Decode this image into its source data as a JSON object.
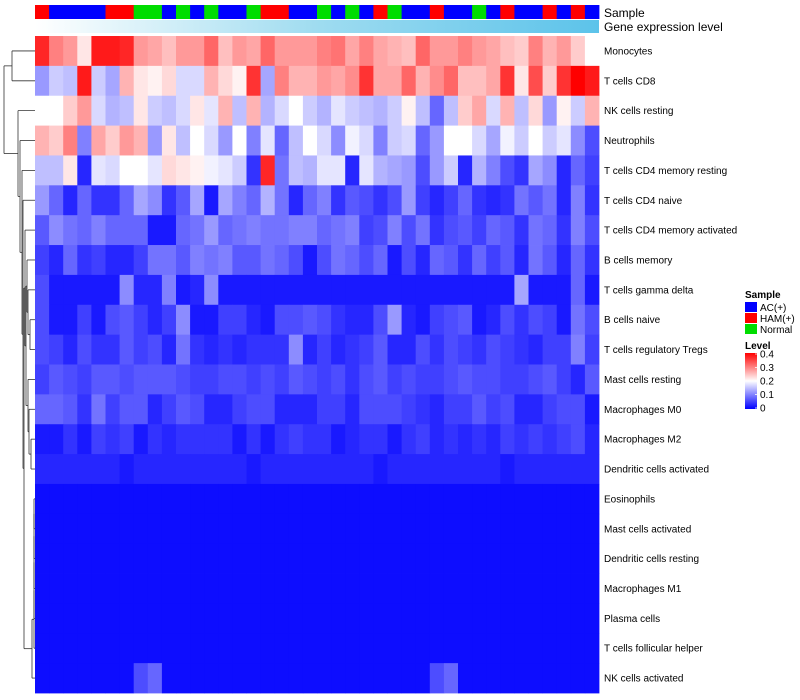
{
  "chart_data": {
    "type": "heatmap",
    "title": "",
    "annotation_row_labels": [
      "Sample",
      "Gene expression level"
    ],
    "row_labels": [
      "Monocytes",
      "T cells CD8",
      "NK cells resting",
      "Neutrophils",
      "T cells CD4 memory resting",
      "T cells CD4 naive",
      "T cells CD4 memory activated",
      "B cells memory",
      "T cells gamma delta",
      "B cells naive",
      "T cells regulatory  Tregs",
      "Mast cells resting",
      "Macrophages M0",
      "Macrophages M2",
      "Dendritic cells activated",
      "Eosinophils",
      "Mast cells activated",
      "Dendritic cells resting",
      "Macrophages M1",
      "Plasma cells",
      "T cells follicular helper",
      "NK cells activated"
    ],
    "sample_groups": [
      "HAM",
      "AC",
      "AC",
      "AC",
      "AC",
      "HAM",
      "HAM",
      "Normal",
      "Normal",
      "AC",
      "Normal",
      "AC",
      "Normal",
      "AC",
      "AC",
      "Normal",
      "HAM",
      "HAM",
      "AC",
      "AC",
      "Normal",
      "AC",
      "Normal",
      "AC",
      "HAM",
      "Normal",
      "AC",
      "AC",
      "HAM",
      "AC",
      "AC",
      "Normal",
      "AC",
      "HAM",
      "AC",
      "AC",
      "HAM",
      "AC",
      "HAM",
      "AC"
    ],
    "color_scale": {
      "min": 0,
      "max": 0.4,
      "colors": [
        "#0000ff",
        "#ffffff",
        "#ff0000"
      ],
      "ticks": [
        "0.4",
        "0.3",
        "0.2",
        "0.1",
        "0"
      ]
    },
    "legend_sample": {
      "title": "Sample",
      "entries": [
        {
          "label": "AC(+)",
          "color": "#0000ff"
        },
        {
          "label": "HAM(+)",
          "color": "#ff0000"
        },
        {
          "label": "Normal",
          "color": "#00dd00"
        }
      ]
    },
    "legend_level": {
      "title": "Level"
    },
    "gene_expression_bar_colors": [
      "#ffffff",
      "#9fdcf0",
      "#5cc3ea"
    ],
    "values": [
      [
        0.37,
        0.3,
        0.28,
        0.22,
        0.38,
        0.38,
        0.37,
        0.28,
        0.27,
        0.25,
        0.28,
        0.28,
        0.32,
        0.25,
        0.28,
        0.27,
        0.32,
        0.28,
        0.28,
        0.28,
        0.3,
        0.31,
        0.27,
        0.3,
        0.27,
        0.26,
        0.25,
        0.32,
        0.28,
        0.28,
        0.3,
        0.28,
        0.27,
        0.25,
        0.24,
        0.3,
        0.26,
        0.28,
        0.24,
        0.2
      ],
      [
        0.12,
        0.16,
        0.15,
        0.38,
        0.16,
        0.13,
        0.26,
        0.22,
        0.21,
        0.23,
        0.17,
        0.17,
        0.26,
        0.23,
        0.21,
        0.36,
        0.13,
        0.3,
        0.26,
        0.26,
        0.28,
        0.27,
        0.29,
        0.36,
        0.27,
        0.27,
        0.32,
        0.26,
        0.29,
        0.32,
        0.25,
        0.25,
        0.27,
        0.36,
        0.22,
        0.34,
        0.24,
        0.36,
        0.4,
        0.38
      ],
      [
        0.2,
        0.2,
        0.24,
        0.28,
        0.17,
        0.14,
        0.15,
        0.22,
        0.16,
        0.15,
        0.17,
        0.22,
        0.18,
        0.26,
        0.15,
        0.26,
        0.14,
        0.17,
        0.2,
        0.16,
        0.14,
        0.18,
        0.16,
        0.15,
        0.14,
        0.16,
        0.21,
        0.15,
        0.08,
        0.15,
        0.24,
        0.27,
        0.17,
        0.26,
        0.15,
        0.23,
        0.12,
        0.21,
        0.16,
        0.26
      ],
      [
        0.26,
        0.24,
        0.3,
        0.1,
        0.27,
        0.24,
        0.28,
        0.26,
        0.12,
        0.22,
        0.15,
        0.2,
        0.17,
        0.12,
        0.2,
        0.1,
        0.18,
        0.08,
        0.15,
        0.2,
        0.17,
        0.11,
        0.19,
        0.17,
        0.1,
        0.16,
        0.17,
        0.08,
        0.12,
        0.2,
        0.2,
        0.17,
        0.13,
        0.19,
        0.16,
        0.2,
        0.16,
        0.18,
        0.11,
        0.06
      ],
      [
        0.15,
        0.15,
        0.22,
        0.03,
        0.18,
        0.17,
        0.2,
        0.2,
        0.18,
        0.23,
        0.22,
        0.21,
        0.19,
        0.18,
        0.16,
        0.04,
        0.37,
        0.09,
        0.15,
        0.14,
        0.18,
        0.18,
        0.03,
        0.18,
        0.14,
        0.13,
        0.12,
        0.06,
        0.12,
        0.16,
        0.03,
        0.14,
        0.1,
        0.06,
        0.04,
        0.13,
        0.11,
        0.03,
        0.08,
        0.05
      ],
      [
        0.12,
        0.08,
        0.03,
        0.08,
        0.04,
        0.04,
        0.08,
        0.13,
        0.11,
        0.04,
        0.07,
        0.13,
        0.02,
        0.13,
        0.1,
        0.08,
        0.14,
        0.09,
        0.03,
        0.08,
        0.1,
        0.04,
        0.07,
        0.06,
        0.04,
        0.06,
        0.12,
        0.05,
        0.03,
        0.05,
        0.08,
        0.04,
        0.03,
        0.04,
        0.09,
        0.07,
        0.09,
        0.03,
        0.1,
        0.04
      ],
      [
        0.07,
        0.11,
        0.09,
        0.08,
        0.1,
        0.08,
        0.08,
        0.08,
        0.02,
        0.02,
        0.08,
        0.09,
        0.12,
        0.08,
        0.09,
        0.1,
        0.09,
        0.09,
        0.1,
        0.1,
        0.08,
        0.09,
        0.1,
        0.05,
        0.06,
        0.1,
        0.06,
        0.09,
        0.04,
        0.06,
        0.07,
        0.05,
        0.08,
        0.07,
        0.04,
        0.09,
        0.08,
        0.04,
        0.1,
        0.06
      ],
      [
        0.05,
        0.03,
        0.08,
        0.04,
        0.05,
        0.03,
        0.03,
        0.05,
        0.09,
        0.09,
        0.07,
        0.1,
        0.09,
        0.1,
        0.07,
        0.07,
        0.09,
        0.08,
        0.06,
        0.02,
        0.06,
        0.09,
        0.08,
        0.06,
        0.08,
        0.02,
        0.06,
        0.03,
        0.08,
        0.07,
        0.04,
        0.08,
        0.05,
        0.07,
        0.03,
        0.09,
        0.07,
        0.03,
        0.08,
        0.04
      ],
      [
        0.06,
        0.02,
        0.02,
        0.02,
        0.02,
        0.02,
        0.11,
        0.03,
        0.03,
        0.1,
        0.02,
        0.03,
        0.11,
        0.02,
        0.02,
        0.02,
        0.02,
        0.02,
        0.02,
        0.02,
        0.02,
        0.02,
        0.02,
        0.02,
        0.02,
        0.02,
        0.02,
        0.02,
        0.02,
        0.02,
        0.02,
        0.02,
        0.02,
        0.02,
        0.13,
        0.02,
        0.02,
        0.02,
        0.08,
        0.02
      ],
      [
        0.06,
        0.02,
        0.02,
        0.05,
        0.02,
        0.06,
        0.07,
        0.05,
        0.03,
        0.05,
        0.11,
        0.02,
        0.02,
        0.05,
        0.05,
        0.03,
        0.02,
        0.06,
        0.06,
        0.07,
        0.06,
        0.04,
        0.03,
        0.03,
        0.06,
        0.12,
        0.03,
        0.02,
        0.05,
        0.06,
        0.07,
        0.02,
        0.03,
        0.06,
        0.04,
        0.06,
        0.05,
        0.02,
        0.09,
        0.06
      ],
      [
        0.06,
        0.05,
        0.03,
        0.06,
        0.04,
        0.04,
        0.07,
        0.05,
        0.06,
        0.03,
        0.09,
        0.04,
        0.03,
        0.04,
        0.03,
        0.04,
        0.04,
        0.04,
        0.11,
        0.03,
        0.05,
        0.03,
        0.04,
        0.05,
        0.07,
        0.03,
        0.03,
        0.06,
        0.04,
        0.06,
        0.05,
        0.04,
        0.06,
        0.05,
        0.04,
        0.03,
        0.05,
        0.05,
        0.1,
        0.05
      ],
      [
        0.05,
        0.07,
        0.06,
        0.05,
        0.07,
        0.07,
        0.06,
        0.07,
        0.07,
        0.07,
        0.06,
        0.05,
        0.05,
        0.06,
        0.06,
        0.05,
        0.06,
        0.05,
        0.07,
        0.06,
        0.05,
        0.06,
        0.04,
        0.06,
        0.07,
        0.05,
        0.06,
        0.05,
        0.05,
        0.06,
        0.07,
        0.06,
        0.06,
        0.05,
        0.05,
        0.06,
        0.07,
        0.05,
        0.03,
        0.07
      ],
      [
        0.08,
        0.08,
        0.07,
        0.04,
        0.09,
        0.05,
        0.07,
        0.07,
        0.03,
        0.05,
        0.07,
        0.06,
        0.03,
        0.03,
        0.05,
        0.06,
        0.06,
        0.03,
        0.03,
        0.03,
        0.05,
        0.05,
        0.03,
        0.06,
        0.06,
        0.06,
        0.05,
        0.04,
        0.03,
        0.05,
        0.05,
        0.07,
        0.05,
        0.06,
        0.03,
        0.03,
        0.05,
        0.06,
        0.06,
        0.02
      ],
      [
        0.02,
        0.02,
        0.04,
        0.02,
        0.05,
        0.04,
        0.05,
        0.02,
        0.04,
        0.03,
        0.04,
        0.04,
        0.04,
        0.04,
        0.02,
        0.04,
        0.02,
        0.04,
        0.05,
        0.04,
        0.04,
        0.02,
        0.03,
        0.04,
        0.04,
        0.02,
        0.04,
        0.05,
        0.03,
        0.04,
        0.03,
        0.04,
        0.03,
        0.05,
        0.04,
        0.05,
        0.04,
        0.05,
        0.06,
        0.03
      ],
      [
        0.03,
        0.03,
        0.03,
        0.03,
        0.03,
        0.03,
        0.02,
        0.03,
        0.03,
        0.03,
        0.03,
        0.03,
        0.03,
        0.03,
        0.03,
        0.02,
        0.03,
        0.03,
        0.03,
        0.03,
        0.03,
        0.03,
        0.03,
        0.03,
        0.02,
        0.03,
        0.03,
        0.03,
        0.03,
        0.03,
        0.03,
        0.03,
        0.03,
        0.02,
        0.03,
        0.03,
        0.03,
        0.03,
        0.03,
        0.03
      ],
      [
        0.01,
        0.01,
        0.01,
        0.01,
        0.01,
        0.01,
        0.01,
        0.01,
        0.01,
        0.01,
        0.01,
        0.01,
        0.01,
        0.01,
        0.01,
        0.01,
        0.01,
        0.01,
        0.01,
        0.01,
        0.01,
        0.01,
        0.01,
        0.01,
        0.01,
        0.01,
        0.01,
        0.01,
        0.01,
        0.01,
        0.01,
        0.01,
        0.01,
        0.01,
        0.01,
        0.01,
        0.01,
        0.01,
        0.01,
        0.01
      ],
      [
        0.01,
        0.01,
        0.01,
        0.01,
        0.01,
        0.01,
        0.01,
        0.01,
        0.01,
        0.01,
        0.01,
        0.01,
        0.01,
        0.01,
        0.01,
        0.01,
        0.01,
        0.01,
        0.01,
        0.01,
        0.01,
        0.01,
        0.01,
        0.01,
        0.01,
        0.01,
        0.01,
        0.01,
        0.01,
        0.01,
        0.01,
        0.01,
        0.01,
        0.01,
        0.01,
        0.01,
        0.01,
        0.01,
        0.01,
        0.01
      ],
      [
        0.01,
        0.01,
        0.01,
        0.01,
        0.01,
        0.01,
        0.01,
        0.01,
        0.01,
        0.01,
        0.01,
        0.01,
        0.01,
        0.01,
        0.01,
        0.01,
        0.01,
        0.01,
        0.01,
        0.01,
        0.01,
        0.01,
        0.01,
        0.01,
        0.01,
        0.01,
        0.01,
        0.01,
        0.01,
        0.01,
        0.01,
        0.01,
        0.01,
        0.01,
        0.01,
        0.01,
        0.01,
        0.01,
        0.01,
        0.01
      ],
      [
        0.01,
        0.01,
        0.01,
        0.01,
        0.01,
        0.01,
        0.01,
        0.01,
        0.01,
        0.01,
        0.01,
        0.01,
        0.01,
        0.01,
        0.01,
        0.01,
        0.01,
        0.01,
        0.01,
        0.01,
        0.01,
        0.01,
        0.01,
        0.01,
        0.01,
        0.01,
        0.01,
        0.01,
        0.01,
        0.01,
        0.01,
        0.01,
        0.01,
        0.01,
        0.01,
        0.01,
        0.01,
        0.01,
        0.01,
        0.01
      ],
      [
        0.01,
        0.01,
        0.01,
        0.01,
        0.01,
        0.01,
        0.01,
        0.01,
        0.01,
        0.01,
        0.01,
        0.01,
        0.01,
        0.01,
        0.01,
        0.01,
        0.01,
        0.01,
        0.01,
        0.01,
        0.01,
        0.01,
        0.01,
        0.01,
        0.01,
        0.01,
        0.01,
        0.01,
        0.01,
        0.01,
        0.01,
        0.01,
        0.01,
        0.01,
        0.01,
        0.01,
        0.01,
        0.01,
        0.01,
        0.01
      ],
      [
        0.01,
        0.01,
        0.01,
        0.01,
        0.01,
        0.01,
        0.01,
        0.01,
        0.01,
        0.01,
        0.01,
        0.01,
        0.01,
        0.01,
        0.01,
        0.01,
        0.01,
        0.01,
        0.01,
        0.01,
        0.01,
        0.01,
        0.01,
        0.01,
        0.01,
        0.01,
        0.01,
        0.01,
        0.01,
        0.01,
        0.01,
        0.01,
        0.01,
        0.01,
        0.01,
        0.01,
        0.01,
        0.01,
        0.01,
        0.01
      ],
      [
        0.01,
        0.01,
        0.01,
        0.01,
        0.01,
        0.01,
        0.01,
        0.06,
        0.08,
        0.01,
        0.01,
        0.01,
        0.01,
        0.01,
        0.01,
        0.01,
        0.01,
        0.01,
        0.01,
        0.01,
        0.01,
        0.01,
        0.01,
        0.01,
        0.01,
        0.01,
        0.01,
        0.01,
        0.06,
        0.08,
        0.01,
        0.01,
        0.01,
        0.01,
        0.01,
        0.01,
        0.01,
        0.01,
        0.01,
        0.01
      ]
    ]
  }
}
